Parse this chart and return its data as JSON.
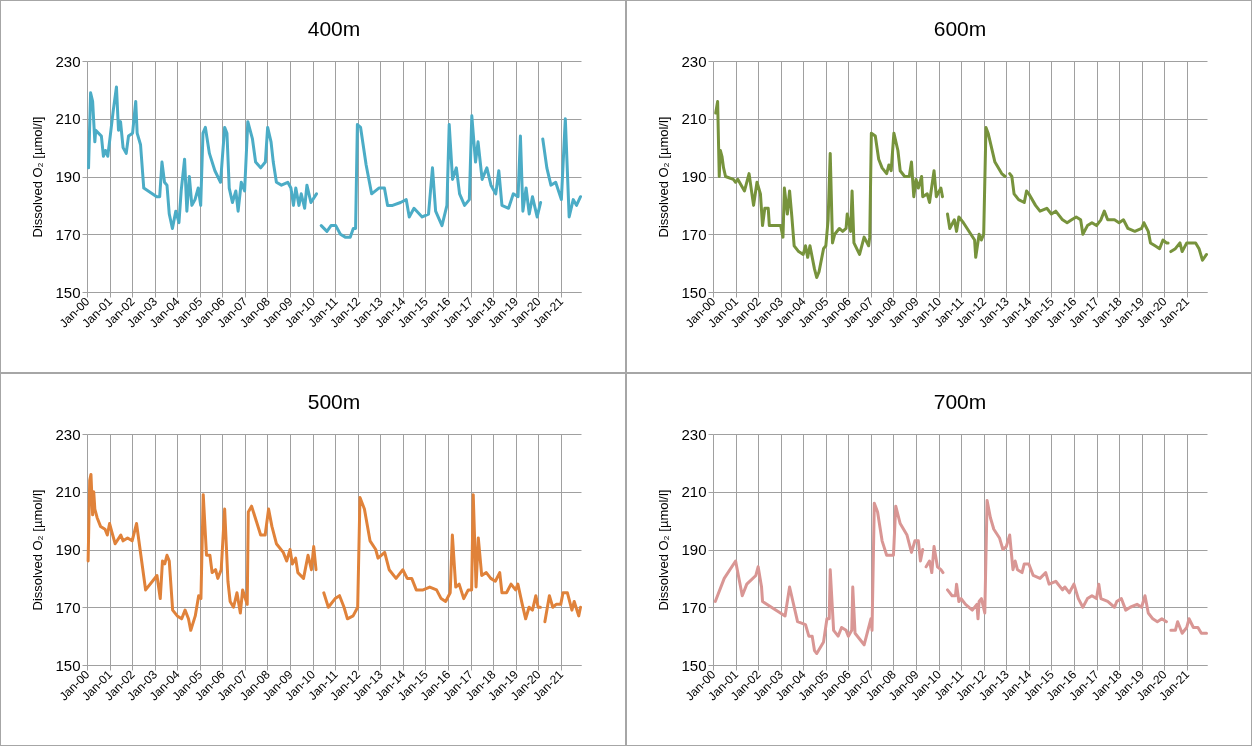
{
  "chart_data": [
    {
      "type": "line",
      "title": "400m",
      "ylabel": "Dissolved O₂ [µmol/l]",
      "color": "#4bacc6",
      "line_style": "solid",
      "grid": true,
      "xlim": [
        "2000-01-01",
        "2021-11-25"
      ],
      "xticks": [
        {
          "value": "2000-01-01",
          "label": "Jan-00"
        },
        {
          "value": "2001-01-01",
          "label": "Jan-01"
        },
        {
          "value": "2002-01-01",
          "label": "Jan-02"
        },
        {
          "value": "2003-01-01",
          "label": "Jan-03"
        },
        {
          "value": "2004-01-01",
          "label": "Jan-04"
        },
        {
          "value": "2005-01-01",
          "label": "Jan-05"
        },
        {
          "value": "2006-01-01",
          "label": "Jan-06"
        },
        {
          "value": "2007-01-01",
          "label": "Jan-07"
        },
        {
          "value": "2008-01-01",
          "label": "Jan-08"
        },
        {
          "value": "2009-01-01",
          "label": "Jan-09"
        },
        {
          "value": "2010-01-01",
          "label": "Jan-10"
        },
        {
          "value": "2011-01-01",
          "label": "Jan-11"
        },
        {
          "value": "2012-01-01",
          "label": "Jan-12"
        },
        {
          "value": "2013-01-01",
          "label": "Jan-13"
        },
        {
          "value": "2014-01-01",
          "label": "Jan-14"
        },
        {
          "value": "2015-01-01",
          "label": "Jan-15"
        },
        {
          "value": "2016-01-01",
          "label": "Jan-16"
        },
        {
          "value": "2017-01-01",
          "label": "Jan-17"
        },
        {
          "value": "2018-01-01",
          "label": "Jan-18"
        },
        {
          "value": "2019-01-01",
          "label": "Jan-19"
        },
        {
          "value": "2020-01-01",
          "label": "Jan-20"
        },
        {
          "value": "2021-01-01",
          "label": "Jan-21"
        }
      ],
      "ylim": [
        150,
        230
      ],
      "yticks": [
        150,
        170,
        190,
        210,
        230
      ],
      "x": [
        "2000-01-26",
        "2000-02-28",
        "2000-04-01",
        "2000-05-07",
        "2000-05-21",
        "2000-08-21",
        "2000-09-23",
        "2000-10-26",
        "2000-12-02",
        "2001-01-11",
        "2001-03-02",
        "2001-04-22",
        "2001-05-25",
        "2001-06-27",
        "2001-08-07",
        "2001-09-27",
        "2001-11-03",
        "2002-01-08",
        "2002-02-28",
        "2002-03-23",
        "2002-05-17",
        "2002-07-08",
        "2003-02-03",
        "2003-03-23",
        "2003-04-29",
        "2003-06-09",
        "2003-07-19",
        "2003-08-25",
        "2003-10-15",
        "2003-12-09",
        "2004-01-29",
        "2004-03-05",
        "2004-04-29",
        "2004-06-05",
        "2004-07-15",
        "2004-08-25",
        "2004-10-15",
        "2004-12-05",
        "2005-01-15",
        "2005-02-21",
        "2005-04-01",
        "2005-06-05",
        "2005-09-02",
        "2005-12-02",
        "2006-02-07",
        "2006-03-16",
        "2006-04-22",
        "2006-06-13",
        "2006-08-07",
        "2006-09-13",
        "2006-11-03",
        "2006-12-27",
        "2007-02-17",
        "2007-05-03",
        "2007-06-23",
        "2007-09-13",
        "2007-11-28",
        "2008-01-04",
        "2008-02-28",
        "2008-04-04",
        "2008-05-25",
        "2008-08-14",
        "2008-11-25",
        "2009-01-15",
        "2009-02-25",
        "2009-04-04",
        "2009-05-25",
        "2009-07-01",
        "2009-08-25",
        "2009-10-01",
        "2009-12-05",
        "2010-03-05",
        "2010-04-11",
        "2010-05-21",
        "2010-08-21",
        "2010-10-26",
        "2011-01-11",
        "2011-03-27",
        "2011-06-13",
        "2011-09-02",
        "2011-10-22",
        "2011-11-28",
        "2011-12-27",
        "2012-02-17",
        "2012-05-17",
        "2012-08-14",
        "2012-12-09",
        "2013-03-09",
        "2013-04-29",
        "2013-07-19",
        "2013-11-25",
        "2014-02-25",
        "2014-04-15",
        "2014-07-01",
        "2014-11-10",
        "2015-02-21",
        "2015-04-26",
        "2015-06-16",
        "2015-09-27",
        "2015-12-16",
        "2016-01-22",
        "2016-03-16",
        "2016-05-17",
        "2016-07-08",
        "2016-09-27",
        "2016-12-13",
        "2017-01-22",
        "2017-03-23",
        "2017-05-03",
        "2017-07-08",
        "2017-09-23",
        "2017-11-28",
        "2018-02-14",
        "2018-04-04",
        "2018-05-25",
        "2018-09-09",
        "2018-11-25",
        "2019-02-10",
        "2019-03-20",
        "2019-04-29",
        "2019-06-20",
        "2019-08-10",
        "2019-10-01",
        "2019-12-16",
        "2020-02-10",
        "2020-02-28",
        "2020-03-16",
        "2020-05-21",
        "2020-07-26",
        "2020-10-11",
        "2021-01-11",
        "2021-03-16",
        "2021-05-17",
        "2021-07-22",
        "2021-09-13",
        "2021-11-17"
      ],
      "values": [
        193,
        219,
        216,
        202,
        206,
        204,
        197,
        199,
        197,
        204,
        213,
        221,
        206,
        209,
        200,
        198,
        204,
        205,
        216,
        205,
        201,
        186,
        183,
        183,
        195,
        188,
        187,
        177,
        172,
        178,
        174,
        185,
        196,
        178,
        190,
        180,
        182,
        186,
        180,
        205,
        207,
        198,
        192,
        188,
        207,
        205,
        186,
        181,
        185,
        178,
        188,
        185,
        209,
        203,
        195,
        193,
        195,
        207,
        202,
        195,
        188,
        187,
        188,
        186,
        180,
        186,
        180,
        184,
        179,
        187,
        181,
        184,
        null,
        173,
        171,
        173,
        173,
        170,
        169,
        169,
        172,
        172,
        208,
        207,
        194,
        184,
        186,
        186,
        180,
        180,
        181,
        182,
        176,
        179,
        176,
        177,
        193,
        178,
        173,
        180,
        208,
        189,
        193,
        184,
        180,
        182,
        211,
        195,
        202,
        189,
        193,
        187,
        184,
        192,
        180,
        179,
        184,
        183,
        204,
        178,
        186,
        177,
        183,
        176,
        181,
        null,
        203,
        193,
        187,
        188,
        182,
        210,
        176,
        182,
        180,
        183
      ]
    },
    {
      "type": "line",
      "title": "600m",
      "ylabel": "Dissolved O₂ [µmol/l]",
      "color": "#77933c",
      "line_style": "solid",
      "grid": true,
      "xlim": [
        "2000-01-01",
        "2021-11-25"
      ],
      "xticks": [
        {
          "value": "2000-01-01",
          "label": "Jan-00"
        },
        {
          "value": "2001-01-01",
          "label": "Jan-01"
        },
        {
          "value": "2002-01-01",
          "label": "Jan-02"
        },
        {
          "value": "2003-01-01",
          "label": "Jan-03"
        },
        {
          "value": "2004-01-01",
          "label": "Jan-04"
        },
        {
          "value": "2005-01-01",
          "label": "Jan-05"
        },
        {
          "value": "2006-01-01",
          "label": "Jan-06"
        },
        {
          "value": "2007-01-01",
          "label": "Jan-07"
        },
        {
          "value": "2008-01-01",
          "label": "Jan-08"
        },
        {
          "value": "2009-01-01",
          "label": "Jan-09"
        },
        {
          "value": "2010-01-01",
          "label": "Jan-10"
        },
        {
          "value": "2011-01-01",
          "label": "Jan-11"
        },
        {
          "value": "2012-01-01",
          "label": "Jan-12"
        },
        {
          "value": "2013-01-01",
          "label": "Jan-13"
        },
        {
          "value": "2014-01-01",
          "label": "Jan-14"
        },
        {
          "value": "2015-01-01",
          "label": "Jan-15"
        },
        {
          "value": "2016-01-01",
          "label": "Jan-16"
        },
        {
          "value": "2017-01-01",
          "label": "Jan-17"
        },
        {
          "value": "2018-01-01",
          "label": "Jan-18"
        },
        {
          "value": "2019-01-01",
          "label": "Jan-19"
        },
        {
          "value": "2020-01-01",
          "label": "Jan-20"
        },
        {
          "value": "2021-01-01",
          "label": "Jan-21"
        }
      ],
      "ylim": [
        150,
        230
      ],
      "yticks": [
        150,
        170,
        190,
        210,
        230
      ],
      "x": [
        "2000-02-14",
        "2000-03-16",
        "2000-04-11",
        "2000-04-29",
        "2000-05-25",
        "2000-06-20",
        "2000-07-22",
        "2000-11-25",
        "2001-01-01",
        "2001-02-07",
        "2001-05-25",
        "2001-08-07",
        "2001-10-19",
        "2001-12-13",
        "2002-02-07",
        "2002-03-13",
        "2002-04-19",
        "2002-06-13",
        "2002-07-01",
        "2003-01-01",
        "2003-02-07",
        "2003-03-02",
        "2003-04-19",
        "2003-05-25",
        "2003-07-01",
        "2003-08-07",
        "2003-10-19",
        "2004-01-01",
        "2004-02-07",
        "2004-03-13",
        "2004-04-19",
        "2004-07-01",
        "2004-08-07",
        "2004-09-13",
        "2004-11-25",
        "2005-01-01",
        "2005-02-07",
        "2005-03-13",
        "2005-04-19",
        "2005-05-25",
        "2005-08-07",
        "2005-10-01",
        "2005-11-25",
        "2005-12-13",
        "2006-02-07",
        "2006-03-02",
        "2006-04-01",
        "2006-07-01",
        "2006-09-13",
        "2006-11-25",
        "2006-12-13",
        "2007-01-08",
        "2007-03-13",
        "2007-05-07",
        "2007-07-01",
        "2007-09-13",
        "2007-10-19",
        "2007-11-25",
        "2008-01-08",
        "2008-03-13",
        "2008-04-19",
        "2008-07-01",
        "2008-09-13",
        "2008-10-19",
        "2008-11-25",
        "2009-01-01",
        "2009-02-07",
        "2009-04-01",
        "2009-04-19",
        "2009-07-01",
        "2009-08-07",
        "2009-10-19",
        "2009-11-25",
        "2010-02-07",
        "2010-03-05",
        "2010-04-19",
        "2010-05-25",
        "2010-07-01",
        "2010-09-13",
        "2010-10-19",
        "2010-11-25",
        "2011-02-07",
        "2011-08-07",
        "2011-08-25",
        "2011-10-19",
        "2011-11-25",
        "2012-01-01",
        "2012-02-07",
        "2012-03-13",
        "2012-07-01",
        "2012-10-19",
        "2012-12-13",
        "2013-01-19",
        "2013-02-25",
        "2013-04-01",
        "2013-05-07",
        "2013-07-19",
        "2013-10-19",
        "2013-11-25",
        "2014-01-01",
        "2014-04-19",
        "2014-07-01",
        "2014-10-19",
        "2015-01-01",
        "2015-03-13",
        "2015-07-01",
        "2015-09-13",
        "2015-11-25",
        "2016-02-07",
        "2016-04-19",
        "2016-05-25",
        "2016-08-07",
        "2016-10-19",
        "2017-01-01",
        "2017-03-13",
        "2017-05-07",
        "2017-07-01",
        "2017-10-19",
        "2018-01-01",
        "2018-03-13",
        "2018-05-25",
        "2018-09-13",
        "2019-01-01",
        "2019-02-07",
        "2019-04-19",
        "2019-05-25",
        "2019-08-07",
        "2019-10-19",
        "2019-12-13",
        "2020-02-07",
        "2020-03-05",
        "2020-03-27",
        "2020-04-19",
        "2020-07-01",
        "2020-09-13",
        "2020-10-19",
        "2021-01-01",
        "2021-03-13",
        "2021-05-25",
        "2021-07-19",
        "2021-09-13",
        "2021-11-17"
      ],
      "values": [
        212,
        216,
        190,
        199,
        197,
        193,
        190,
        189,
        188,
        189,
        185,
        191,
        180,
        188,
        184,
        173,
        179,
        179,
        173,
        173,
        169,
        186,
        177,
        185,
        176,
        166,
        164,
        163,
        166,
        162,
        166,
        158,
        155,
        157,
        165,
        166,
        175,
        198,
        167,
        170,
        172,
        171,
        172,
        177,
        171,
        185,
        167,
        163,
        169,
        166,
        169,
        205,
        204,
        196,
        193,
        191,
        194,
        192,
        205,
        199,
        192,
        190,
        190,
        195,
        183,
        189,
        186,
        190,
        183,
        184,
        181,
        192,
        183,
        186,
        183,
        null,
        177,
        172,
        175,
        171,
        176,
        174,
        168,
        162,
        170,
        168,
        170,
        207,
        205,
        195,
        191,
        190,
        null,
        191,
        190,
        184,
        182,
        181,
        185,
        184,
        180,
        178,
        179,
        177,
        178,
        175,
        174,
        175,
        176,
        175,
        170,
        173,
        174,
        173,
        175,
        178,
        175,
        175,
        174,
        175,
        172,
        171,
        172,
        174,
        171,
        167,
        166,
        165,
        168,
        167,
        167,
        null,
        164,
        165,
        167,
        164,
        167,
        167,
        167,
        165,
        161,
        163
      ]
    },
    {
      "type": "line",
      "title": "500m",
      "ylabel": "Dissolved O₂ [µmol/l]",
      "color": "#e0823a",
      "line_style": "solid",
      "grid": true,
      "xlim": [
        "2000-01-01",
        "2021-11-25"
      ],
      "xticks": [
        {
          "value": "2000-01-01",
          "label": "Jan-00"
        },
        {
          "value": "2001-01-01",
          "label": "Jan-01"
        },
        {
          "value": "2002-01-01",
          "label": "Jan-02"
        },
        {
          "value": "2003-01-01",
          "label": "Jan-03"
        },
        {
          "value": "2004-01-01",
          "label": "Jan-04"
        },
        {
          "value": "2005-01-01",
          "label": "Jan-05"
        },
        {
          "value": "2006-01-01",
          "label": "Jan-06"
        },
        {
          "value": "2007-01-01",
          "label": "Jan-07"
        },
        {
          "value": "2008-01-01",
          "label": "Jan-08"
        },
        {
          "value": "2009-01-01",
          "label": "Jan-09"
        },
        {
          "value": "2010-01-01",
          "label": "Jan-10"
        },
        {
          "value": "2011-01-01",
          "label": "Jan-11"
        },
        {
          "value": "2012-01-01",
          "label": "Jan-12"
        },
        {
          "value": "2013-01-01",
          "label": "Jan-13"
        },
        {
          "value": "2014-01-01",
          "label": "Jan-14"
        },
        {
          "value": "2015-01-01",
          "label": "Jan-15"
        },
        {
          "value": "2016-01-01",
          "label": "Jan-16"
        },
        {
          "value": "2017-01-01",
          "label": "Jan-17"
        },
        {
          "value": "2018-01-01",
          "label": "Jan-18"
        },
        {
          "value": "2019-01-01",
          "label": "Jan-19"
        },
        {
          "value": "2020-01-01",
          "label": "Jan-20"
        },
        {
          "value": "2021-01-01",
          "label": "Jan-21"
        }
      ],
      "ylim": [
        150,
        230
      ],
      "yticks": [
        150,
        170,
        190,
        210,
        230
      ],
      "x": [
        "2000-01-19",
        "2000-02-14",
        "2000-03-05",
        "2000-04-01",
        "2000-04-19",
        "2000-05-07",
        "2000-06-13",
        "2000-08-07",
        "2000-10-19",
        "2000-11-25",
        "2001-01-01",
        "2001-02-07",
        "2001-04-01",
        "2001-07-01",
        "2001-08-07",
        "2001-10-19",
        "2002-01-01",
        "2002-03-13",
        "2002-08-07",
        "2003-02-07",
        "2003-04-01",
        "2003-05-07",
        "2003-06-13",
        "2003-07-19",
        "2003-08-25",
        "2003-10-19",
        "2004-01-01",
        "2004-03-13",
        "2004-05-07",
        "2004-07-01",
        "2004-08-07",
        "2004-10-19",
        "2004-12-13",
        "2005-01-19",
        "2005-02-25",
        "2005-04-19",
        "2005-06-13",
        "2005-07-19",
        "2005-09-13",
        "2005-10-19",
        "2005-12-13",
        "2006-02-07",
        "2006-04-01",
        "2006-05-07",
        "2006-07-01",
        "2006-08-25",
        "2006-10-19",
        "2006-11-25",
        "2007-02-07",
        "2007-02-25",
        "2007-04-19",
        "2007-09-13",
        "2007-11-25",
        "2008-01-19",
        "2008-03-13",
        "2008-05-25",
        "2008-09-13",
        "2008-11-07",
        "2009-01-01",
        "2009-02-07",
        "2009-04-01",
        "2009-05-07",
        "2009-08-07",
        "2009-10-19",
        "2009-12-13",
        "2010-01-19",
        "2010-02-25",
        "2010-04-19",
        "2010-07-01",
        "2010-09-13",
        "2011-01-01",
        "2011-03-13",
        "2011-05-25",
        "2011-07-19",
        "2011-10-19",
        "2012-01-01",
        "2012-02-07",
        "2012-04-19",
        "2012-07-19",
        "2012-10-19",
        "2012-11-25",
        "2013-03-13",
        "2013-05-25",
        "2013-09-13",
        "2014-01-01",
        "2014-03-13",
        "2014-05-25",
        "2014-08-07",
        "2014-11-25",
        "2015-03-13",
        "2015-07-01",
        "2015-09-13",
        "2015-11-25",
        "2016-02-07",
        "2016-03-13",
        "2016-05-07",
        "2016-07-01",
        "2016-09-13",
        "2016-11-25",
        "2017-01-19",
        "2017-02-14",
        "2017-04-01",
        "2017-05-07",
        "2017-07-01",
        "2017-09-13",
        "2017-11-25",
        "2018-02-07",
        "2018-04-19",
        "2018-05-25",
        "2018-08-07",
        "2018-10-19",
        "2019-01-01",
        "2019-02-07",
        "2019-04-19",
        "2019-06-13",
        "2019-08-07",
        "2019-10-01",
        "2019-11-25",
        "2020-01-01",
        "2020-02-07",
        "2020-03-13",
        "2020-04-19",
        "2020-07-01",
        "2020-08-25",
        "2020-10-19",
        "2021-01-01",
        "2021-02-07",
        "2021-04-19",
        "2021-07-01",
        "2021-08-07",
        "2021-10-19",
        "2021-11-17"
      ],
      "values": [
        186,
        214,
        216,
        202,
        210,
        204,
        201,
        198,
        197,
        195,
        199,
        196,
        192,
        195,
        193,
        194,
        193,
        199,
        176,
        181,
        173,
        186,
        185,
        188,
        186,
        169,
        167,
        166,
        169,
        166,
        162,
        167,
        174,
        173,
        209,
        188,
        188,
        182,
        183,
        180,
        183,
        204,
        179,
        172,
        170,
        175,
        168,
        176,
        171,
        203,
        205,
        195,
        195,
        204,
        198,
        192,
        189,
        186,
        190,
        185,
        187,
        182,
        180,
        188,
        183,
        191,
        183,
        null,
        175,
        170,
        173,
        174,
        170,
        166,
        167,
        170,
        208,
        204,
        193,
        190,
        187,
        189,
        183,
        180,
        183,
        180,
        180,
        176,
        176,
        177,
        176,
        173,
        172,
        175,
        195,
        177,
        178,
        173,
        176,
        176,
        209,
        177,
        194,
        181,
        182,
        180,
        179,
        182,
        175,
        175,
        178,
        176,
        178,
        171,
        166,
        170,
        169,
        174,
        170,
        170,
        null,
        165,
        174,
        170,
        171,
        171,
        175,
        175,
        169,
        172,
        167,
        170
      ]
    },
    {
      "type": "line",
      "title": "700m",
      "ylabel": "Dissolved O₂ [µmol/l]",
      "color": "#d99694",
      "line_style": "solid",
      "grid": true,
      "xlim": [
        "2000-01-01",
        "2021-11-25"
      ],
      "xticks": [
        {
          "value": "2000-01-01",
          "label": "Jan-00"
        },
        {
          "value": "2001-01-01",
          "label": "Jan-01"
        },
        {
          "value": "2002-01-01",
          "label": "Jan-02"
        },
        {
          "value": "2003-01-01",
          "label": "Jan-03"
        },
        {
          "value": "2004-01-01",
          "label": "Jan-04"
        },
        {
          "value": "2005-01-01",
          "label": "Jan-05"
        },
        {
          "value": "2006-01-01",
          "label": "Jan-06"
        },
        {
          "value": "2007-01-01",
          "label": "Jan-07"
        },
        {
          "value": "2008-01-01",
          "label": "Jan-08"
        },
        {
          "value": "2009-01-01",
          "label": "Jan-09"
        },
        {
          "value": "2010-01-01",
          "label": "Jan-10"
        },
        {
          "value": "2011-01-01",
          "label": "Jan-11"
        },
        {
          "value": "2012-01-01",
          "label": "Jan-12"
        },
        {
          "value": "2013-01-01",
          "label": "Jan-13"
        },
        {
          "value": "2014-01-01",
          "label": "Jan-14"
        },
        {
          "value": "2015-01-01",
          "label": "Jan-15"
        },
        {
          "value": "2016-01-01",
          "label": "Jan-16"
        },
        {
          "value": "2017-01-01",
          "label": "Jan-17"
        },
        {
          "value": "2018-01-01",
          "label": "Jan-18"
        },
        {
          "value": "2019-01-01",
          "label": "Jan-19"
        },
        {
          "value": "2020-01-01",
          "label": "Jan-20"
        },
        {
          "value": "2021-01-01",
          "label": "Jan-21"
        }
      ],
      "ylim": [
        150,
        230
      ],
      "yticks": [
        150,
        170,
        190,
        210,
        230
      ],
      "x": [
        "2000-02-07",
        "2000-07-01",
        "2001-01-01",
        "2001-04-19",
        "2001-07-01",
        "2001-11-25",
        "2002-01-01",
        "2002-02-25",
        "2002-03-13",
        "2003-03-13",
        "2003-05-25",
        "2003-10-01",
        "2004-02-07",
        "2004-04-01",
        "2004-05-25",
        "2004-07-01",
        "2004-08-07",
        "2004-11-25",
        "2005-01-19",
        "2005-02-25",
        "2005-03-13",
        "2005-05-07",
        "2005-07-19",
        "2005-09-13",
        "2005-11-25",
        "2006-01-01",
        "2006-02-25",
        "2006-03-13",
        "2006-04-19",
        "2006-09-13",
        "2007-01-01",
        "2007-01-19",
        "2007-02-25",
        "2007-04-19",
        "2007-07-01",
        "2007-09-13",
        "2008-01-01",
        "2008-02-07",
        "2008-04-19",
        "2008-08-07",
        "2008-10-19",
        "2008-12-13",
        "2009-02-07",
        "2009-03-13",
        "2009-04-19",
        "2009-05-25",
        "2009-06-13",
        "2009-08-07",
        "2009-09-13",
        "2009-10-19",
        "2009-12-13",
        "2010-02-07",
        "2010-03-13",
        "2010-04-19",
        "2010-05-25",
        "2010-08-07",
        "2010-10-01",
        "2010-10-19",
        "2010-11-25",
        "2011-01-01",
        "2011-03-13",
        "2011-07-01",
        "2011-09-13",
        "2011-10-01",
        "2011-10-19",
        "2011-11-25",
        "2012-01-19",
        "2012-02-25",
        "2012-04-19",
        "2012-06-13",
        "2012-09-13",
        "2012-11-07",
        "2013-01-01",
        "2013-02-25",
        "2013-04-19",
        "2013-05-25",
        "2013-07-01",
        "2013-09-13",
        "2013-10-19",
        "2014-01-01",
        "2014-03-13",
        "2014-07-01",
        "2014-10-01",
        "2014-11-25",
        "2015-03-13",
        "2015-07-01",
        "2015-08-07",
        "2015-10-19",
        "2016-01-01",
        "2016-03-13",
        "2016-05-25",
        "2016-08-07",
        "2016-10-19",
        "2017-01-01",
        "2017-02-07",
        "2017-03-13",
        "2017-07-01",
        "2017-10-19",
        "2017-11-25",
        "2018-02-07",
        "2018-04-19",
        "2018-07-01",
        "2018-10-19",
        "2019-01-01",
        "2019-02-25",
        "2019-04-19",
        "2019-07-01",
        "2019-09-13",
        "2019-11-25",
        "2020-02-07",
        "2020-03-13",
        "2020-04-19",
        "2020-07-01",
        "2020-08-07",
        "2020-10-19",
        "2021-01-01",
        "2021-02-07",
        "2021-04-19",
        "2021-07-01",
        "2021-08-25",
        "2021-11-17"
      ],
      "values": [
        172,
        180,
        186,
        174,
        178,
        181,
        184,
        177,
        172,
        167,
        177,
        165,
        164,
        160,
        160,
        155,
        154,
        158,
        166,
        166,
        183,
        162,
        160,
        163,
        162,
        160,
        162,
        177,
        161,
        157,
        166,
        162,
        206,
        203,
        193,
        188,
        188,
        205,
        199,
        195,
        189,
        193,
        193,
        186,
        190,
        null,
        184,
        186,
        182,
        191,
        184,
        183,
        182,
        null,
        176,
        174,
        174,
        178,
        172,
        173,
        171,
        169,
        171,
        166,
        172,
        173,
        168,
        207,
        201,
        197,
        194,
        190,
        191,
        195,
        183,
        186,
        183,
        182,
        185,
        185,
        181,
        180,
        182,
        178,
        179,
        176,
        177,
        175,
        178,
        173,
        170,
        173,
        174,
        173,
        178,
        173,
        172,
        170,
        172,
        173,
        169,
        170,
        171,
        170,
        174,
        168,
        166,
        165,
        166,
        165,
        null,
        162,
        162,
        165,
        161,
        163,
        166,
        163,
        163,
        161,
        161
      ]
    }
  ]
}
